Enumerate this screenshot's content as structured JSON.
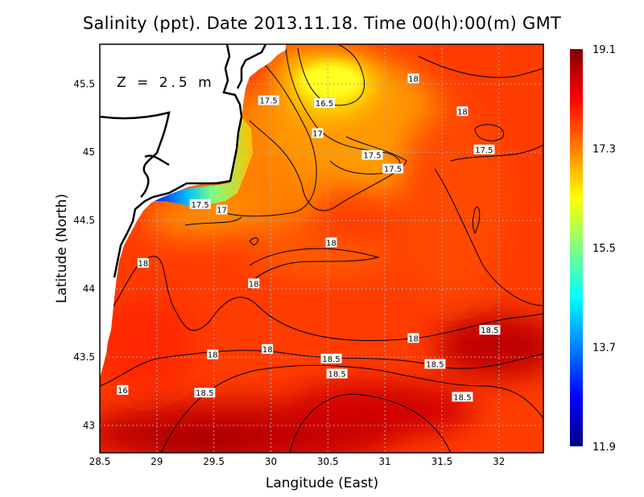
{
  "chart_data": {
    "type": "heatmap",
    "title": "Salinity (ppt). Date 2013.11.18. Time 00(h):00(m) GMT",
    "annotation": "Z = 2.5 m",
    "xlabel": "Langitude (East)",
    "ylabel": "Latitude (North)",
    "xlim": [
      28.5,
      32.39
    ],
    "ylim": [
      42.8,
      45.79
    ],
    "xticks": [
      28.5,
      29,
      29.5,
      30,
      30.5,
      31,
      31.5,
      32
    ],
    "xtick_labels": [
      "28.5",
      "29",
      "29.5",
      "30",
      "30.5",
      "31",
      "31.5",
      "32"
    ],
    "yticks": [
      43,
      43.5,
      44,
      44.5,
      45,
      45.5
    ],
    "ytick_labels": [
      "43",
      "43.5",
      "44",
      "44.5",
      "45",
      "45.5"
    ],
    "grid": true,
    "colorbar": {
      "min": 11.9,
      "max": 19.1,
      "tick_labels": [
        "19.1",
        "17.3",
        "15.5",
        "13.7",
        "11.9"
      ],
      "tick_values": [
        19.1,
        17.3,
        15.5,
        13.7,
        11.9
      ],
      "colors": [
        "#00007f",
        "#0000ff",
        "#0080ff",
        "#00ffff",
        "#80ff80",
        "#ffff00",
        "#ff8000",
        "#ff0000",
        "#7f0000"
      ]
    },
    "contour_levels": [
      16,
      16.5,
      17,
      17.5,
      18,
      18.5
    ],
    "contour_labels": [
      {
        "text": "18",
        "lon": 31.25,
        "lat": 45.54
      },
      {
        "text": "18",
        "lon": 31.68,
        "lat": 45.3
      },
      {
        "text": "17.5",
        "lon": 29.98,
        "lat": 45.38
      },
      {
        "text": "16.5",
        "lon": 30.47,
        "lat": 45.36
      },
      {
        "text": "17",
        "lon": 30.41,
        "lat": 45.14
      },
      {
        "text": "17.5",
        "lon": 31.87,
        "lat": 45.02
      },
      {
        "text": "17.5",
        "lon": 30.89,
        "lat": 44.98
      },
      {
        "text": "17.5",
        "lon": 31.07,
        "lat": 44.88
      },
      {
        "text": "17.5",
        "lon": 29.38,
        "lat": 44.62
      },
      {
        "text": "17",
        "lon": 29.57,
        "lat": 44.58
      },
      {
        "text": "18",
        "lon": 30.53,
        "lat": 44.34
      },
      {
        "text": "18",
        "lon": 28.88,
        "lat": 44.19
      },
      {
        "text": "18",
        "lon": 29.85,
        "lat": 44.04
      },
      {
        "text": "18.5",
        "lon": 31.92,
        "lat": 43.7
      },
      {
        "text": "18",
        "lon": 31.25,
        "lat": 43.64
      },
      {
        "text": "18",
        "lon": 29.97,
        "lat": 43.56
      },
      {
        "text": "18",
        "lon": 29.49,
        "lat": 43.52
      },
      {
        "text": "18.5",
        "lon": 30.53,
        "lat": 43.49
      },
      {
        "text": "18.5",
        "lon": 31.44,
        "lat": 43.45
      },
      {
        "text": "18.5",
        "lon": 30.58,
        "lat": 43.38
      },
      {
        "text": "18.5",
        "lon": 31.68,
        "lat": 43.21
      },
      {
        "text": "16",
        "lon": 28.7,
        "lat": 43.26
      },
      {
        "text": "18.5",
        "lon": 29.42,
        "lat": 43.24
      }
    ]
  }
}
